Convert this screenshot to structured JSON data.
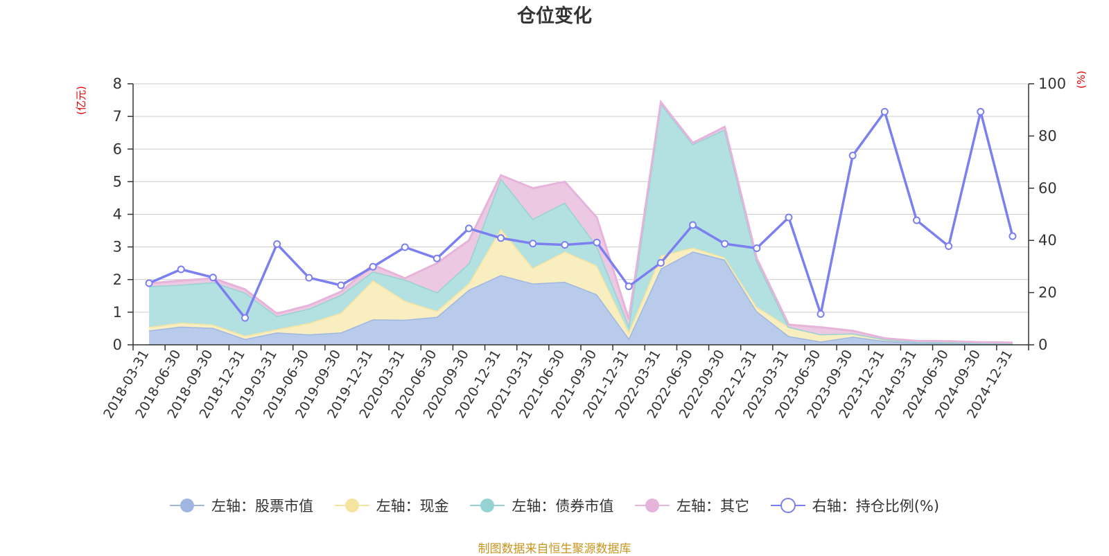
{
  "chart_data": {
    "type": "area",
    "title": "仓位变化",
    "left_axis_unit": "(亿元)",
    "right_axis_unit": "(%)",
    "ylim_left": [
      0,
      8
    ],
    "ylim_right": [
      0,
      100
    ],
    "left_ticks": [
      "0",
      "1",
      "2",
      "3",
      "4",
      "5",
      "6",
      "7",
      "8"
    ],
    "right_ticks": [
      "0",
      "20",
      "40",
      "60",
      "80",
      "100"
    ],
    "categories": [
      "2018-03-31",
      "2018-06-30",
      "2018-09-30",
      "2018-12-31",
      "2019-03-31",
      "2019-06-30",
      "2019-09-30",
      "2019-12-31",
      "2020-03-31",
      "2020-06-30",
      "2020-09-30",
      "2020-12-31",
      "2021-03-31",
      "2021-06-30",
      "2021-09-30",
      "2021-12-31",
      "2022-03-31",
      "2022-06-30",
      "2022-09-30",
      "2022-12-31",
      "2023-03-31",
      "2023-06-30",
      "2023-09-30",
      "2023-12-31",
      "2024-03-31",
      "2024-06-30",
      "2024-09-30",
      "2024-12-31"
    ],
    "stacked_series": [
      {
        "name": "左轴：股票市值",
        "color": "#9fb7e0",
        "fill": "#b8cbea",
        "axis": "left",
        "values": [
          0.44,
          0.56,
          0.52,
          0.18,
          0.38,
          0.32,
          0.38,
          0.78,
          0.77,
          0.86,
          1.69,
          2.14,
          1.88,
          1.93,
          1.55,
          0.2,
          2.34,
          2.86,
          2.61,
          1.03,
          0.27,
          0.1,
          0.25,
          0.12,
          0.06,
          0.05,
          0.03,
          0.03
        ]
      },
      {
        "name": "左轴：现金",
        "color": "#f5e3a0",
        "fill": "#f8eec0",
        "axis": "left",
        "values": [
          0.11,
          0.12,
          0.1,
          0.1,
          0.1,
          0.35,
          0.6,
          1.2,
          0.58,
          0.18,
          0.2,
          1.42,
          0.48,
          0.93,
          0.88,
          0.2,
          0.4,
          0.12,
          0.07,
          0.14,
          0.28,
          0.22,
          0.1,
          0.05,
          0.03,
          0.03,
          0.02,
          0.02
        ]
      },
      {
        "name": "左轴：债券市值",
        "color": "#96d2d2",
        "fill": "#b3e1e1",
        "axis": "left",
        "values": [
          1.25,
          1.16,
          1.3,
          1.32,
          0.4,
          0.44,
          0.55,
          0.27,
          0.65,
          0.57,
          0.61,
          1.54,
          1.5,
          1.5,
          0.6,
          0.19,
          4.66,
          3.17,
          3.92,
          1.4,
          0.0,
          0.0,
          0.0,
          0.0,
          0.0,
          0.0,
          0.0,
          0.0
        ]
      },
      {
        "name": "左轴：其它",
        "color": "#e6b4da",
        "fill": "#ecc8e2",
        "axis": "left",
        "values": [
          0.08,
          0.13,
          0.12,
          0.1,
          0.08,
          0.1,
          0.1,
          0.2,
          0.04,
          0.89,
          0.7,
          0.1,
          0.94,
          0.64,
          0.87,
          0.19,
          0.04,
          0.04,
          0.08,
          0.08,
          0.07,
          0.22,
          0.08,
          0.03,
          0.03,
          0.03,
          0.03,
          0.02
        ]
      }
    ],
    "line_series": {
      "name": "右轴：持仓比例(%)",
      "color": "#7b7ff0",
      "axis": "right",
      "values": [
        23.6,
        28.9,
        25.8,
        10.3,
        38.6,
        25.7,
        22.8,
        29.9,
        37.4,
        33.1,
        44.6,
        40.9,
        38.8,
        38.3,
        39.2,
        22.4,
        31.4,
        45.9,
        38.7,
        37.0,
        48.8,
        11.8,
        72.5,
        89.3,
        47.7,
        37.8,
        89.3,
        41.6
      ]
    },
    "legend": [
      "左轴：股票市值",
      "左轴：现金",
      "左轴：债券市值",
      "左轴：其它",
      "右轴：持仓比例(%)"
    ],
    "source_note": "制图数据来自恒生聚源数据库"
  }
}
